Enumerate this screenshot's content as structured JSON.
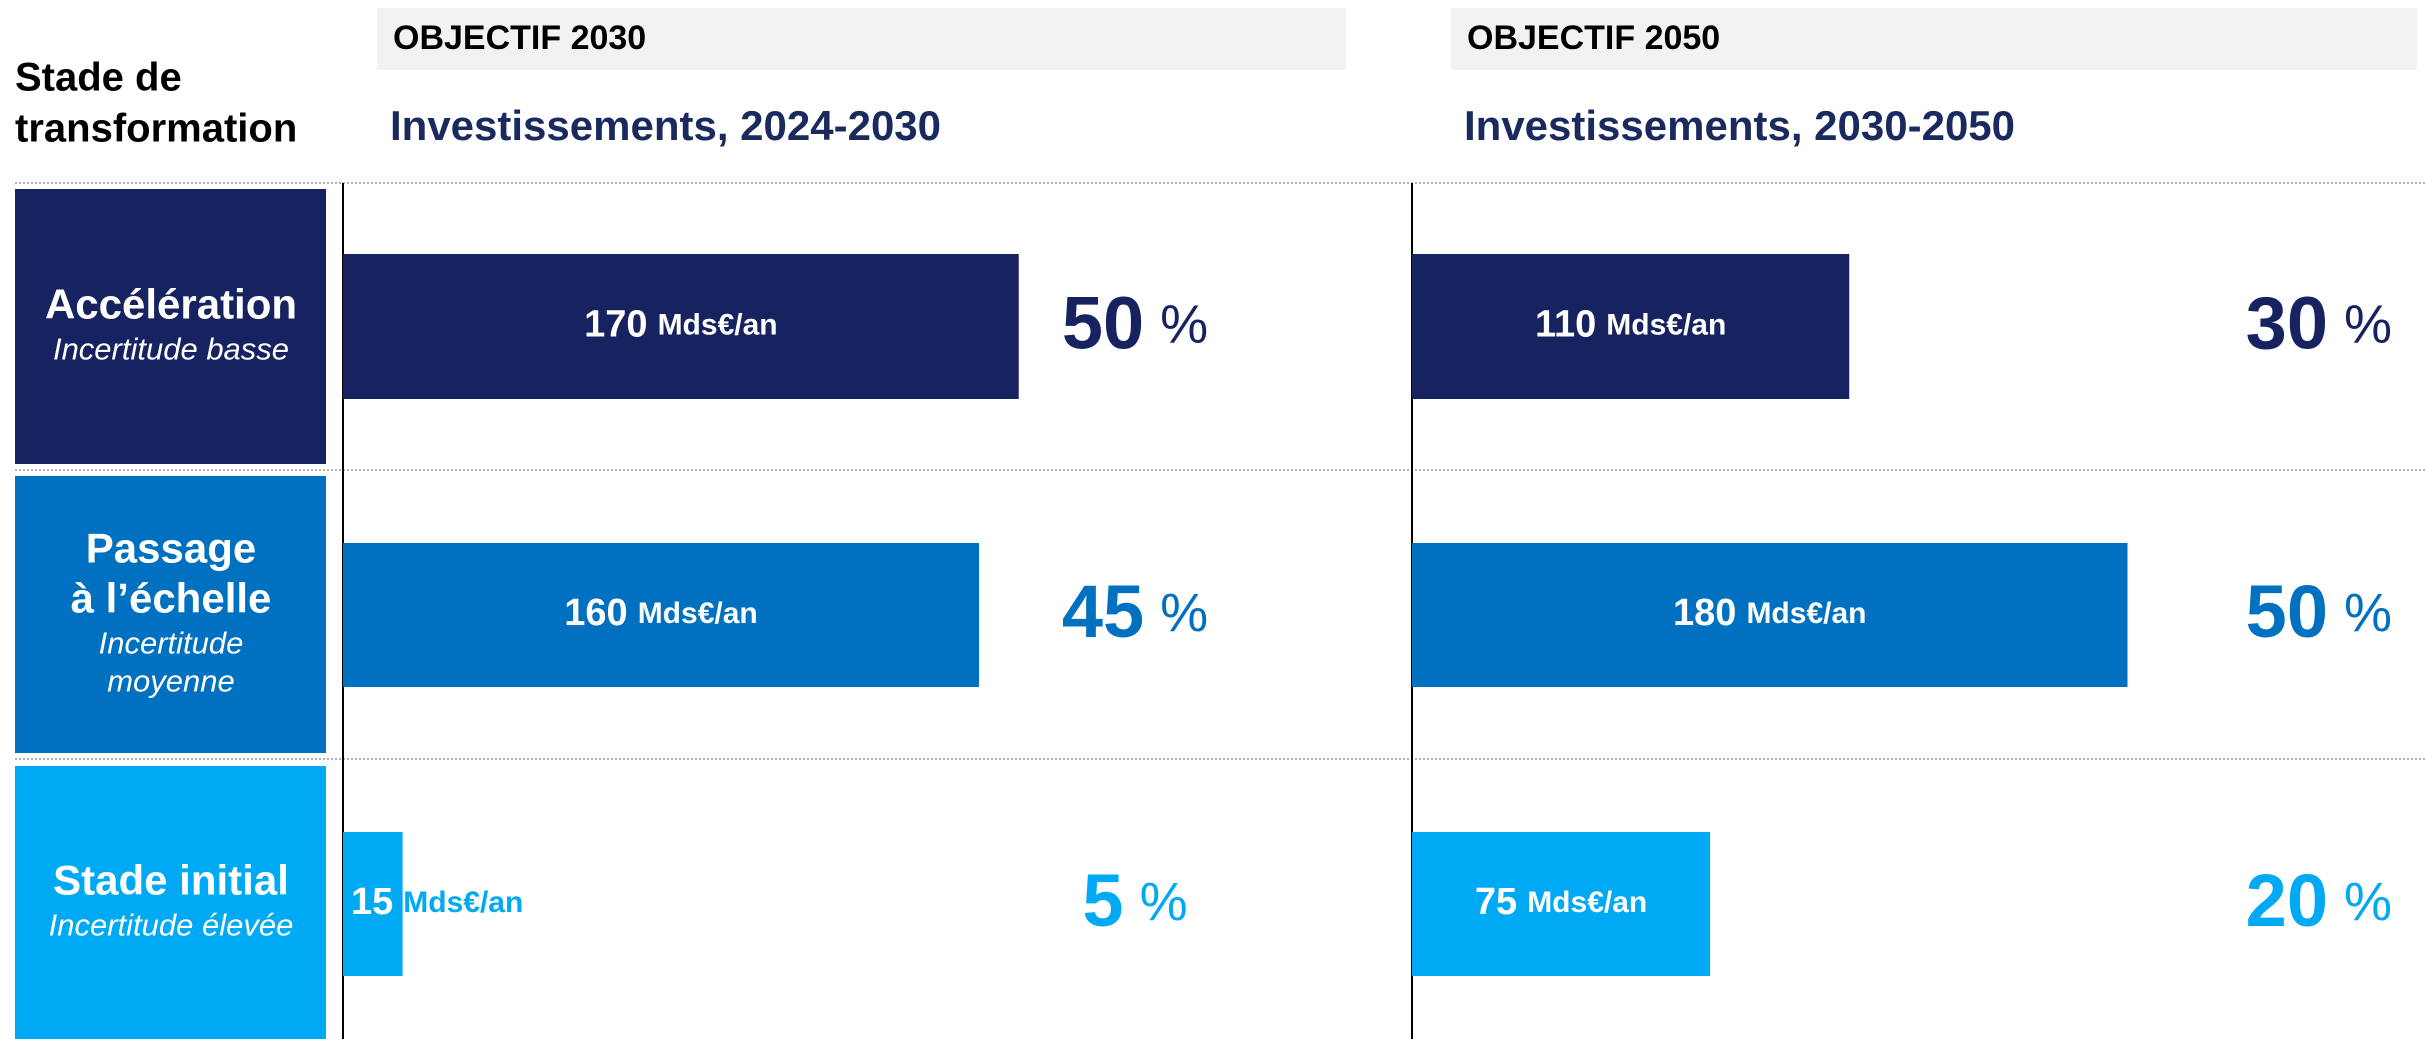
{
  "header": {
    "title_lines": [
      "Stade de",
      "transformation"
    ]
  },
  "stages": [
    {
      "name": [
        "Accélération"
      ],
      "uncertainty": [
        "Incertitude basse"
      ],
      "color": "#172360"
    },
    {
      "name": [
        "Passage",
        "à l’échelle"
      ],
      "uncertainty": [
        "Incertitude",
        "moyenne"
      ],
      "color": "#0070c0"
    },
    {
      "name": [
        "Stade initial"
      ],
      "uncertainty": [
        "Incertitude élevée"
      ],
      "color": "#00a9f4"
    }
  ],
  "panels": [
    {
      "objective": "OBJECTIF 2030",
      "title": "Investissements, 2024-2030",
      "values": [
        170,
        160,
        15
      ],
      "shares": [
        50,
        45,
        5
      ]
    },
    {
      "objective": "OBJECTIF 2050",
      "title": "Investissements, 2030-2050",
      "values": [
        110,
        180,
        75
      ],
      "shares": [
        30,
        50,
        20
      ]
    }
  ],
  "unit": "Mds€/an",
  "share_unit": "%",
  "xlim": [
    0,
    200
  ]
}
